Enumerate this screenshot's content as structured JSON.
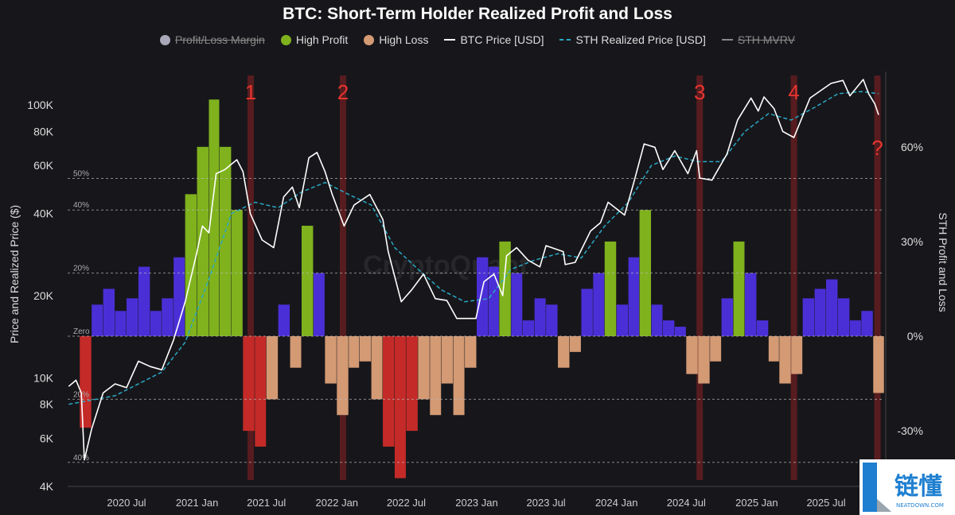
{
  "chart_data": {
    "type": "bar+line",
    "title": "BTC: Short-Term Holder Realized Profit and Loss",
    "legend": [
      {
        "label": "Profit/Loss Margin",
        "color": "#a8a8b8",
        "disabled": true,
        "marker": "dot"
      },
      {
        "label": "High Profit",
        "color": "#7fb21d",
        "disabled": false,
        "marker": "dot"
      },
      {
        "label": "High Loss",
        "color": "#d39a74",
        "disabled": false,
        "marker": "dot"
      },
      {
        "label": "BTC Price [USD]",
        "color": "#ffffff",
        "disabled": false,
        "marker": "line"
      },
      {
        "label": "STH Realized Price [USD]",
        "color": "#2aa7c4",
        "disabled": false,
        "marker": "dash"
      },
      {
        "label": "STH MVRV",
        "color": "#888888",
        "disabled": true,
        "marker": "line"
      }
    ],
    "legend_position": "top",
    "ylabel_left": "Price and Realized Price ($)",
    "ylabel_right": "STH Profit and Loss",
    "y_left_scale": "log",
    "y_left_range": [
      4000,
      130000
    ],
    "y_left_ticks": [
      {
        "v": 4000,
        "label": "4K"
      },
      {
        "v": 6000,
        "label": "6K"
      },
      {
        "v": 8000,
        "label": "8K"
      },
      {
        "v": 10000,
        "label": "10K"
      },
      {
        "v": 20000,
        "label": "20K"
      },
      {
        "v": 40000,
        "label": "40K"
      },
      {
        "v": 60000,
        "label": "60K"
      },
      {
        "v": 80000,
        "label": "80K"
      },
      {
        "v": 100000,
        "label": "100K"
      }
    ],
    "y_right_range": [
      -48,
      80
    ],
    "y_right_ticks": [
      {
        "v": -30,
        "label": "-30%"
      },
      {
        "v": 0,
        "label": "0%"
      },
      {
        "v": 30,
        "label": "30%"
      },
      {
        "v": 60,
        "label": "60%"
      }
    ],
    "x_ticks": [
      {
        "d": "2020-07-01",
        "label": "2020 Jul"
      },
      {
        "d": "2021-01-01",
        "label": "2021 Jan"
      },
      {
        "d": "2021-07-01",
        "label": "2021 Jul"
      },
      {
        "d": "2022-01-01",
        "label": "2022 Jan"
      },
      {
        "d": "2022-07-01",
        "label": "2022 Jul"
      },
      {
        "d": "2023-01-01",
        "label": "2023 Jan"
      },
      {
        "d": "2023-07-01",
        "label": "2023 Jul"
      },
      {
        "d": "2024-01-01",
        "label": "2024 Jan"
      },
      {
        "d": "2024-07-01",
        "label": "2024 Jul"
      },
      {
        "d": "2025-01-01",
        "label": "2025 Jan"
      },
      {
        "d": "2025-07-01",
        "label": "2025 Jul"
      }
    ],
    "x_range": [
      "2020-02-01",
      "2025-11-20"
    ],
    "reference_lines": [
      {
        "v": 50,
        "label": "50%"
      },
      {
        "v": 40,
        "label": "40%"
      },
      {
        "v": 20,
        "label": "20%"
      },
      {
        "v": 0,
        "label": "Zero"
      },
      {
        "v": -20,
        "label": "20%"
      },
      {
        "v": -40,
        "label": "40%"
      }
    ],
    "annotations": [
      {
        "d": "2021-05-21",
        "label": "1"
      },
      {
        "d": "2022-01-17",
        "label": "2"
      },
      {
        "d": "2024-08-05",
        "label": "3"
      },
      {
        "d": "2025-04-08",
        "label": "4"
      },
      {
        "d": "2025-11-12",
        "label": "?"
      }
    ],
    "btc_price": [
      [
        "2020-02-01",
        9300
      ],
      [
        "2020-02-20",
        9800
      ],
      [
        "2020-03-05",
        8800
      ],
      [
        "2020-03-13",
        5000
      ],
      [
        "2020-04-01",
        6500
      ],
      [
        "2020-05-01",
        8800
      ],
      [
        "2020-06-01",
        9500
      ],
      [
        "2020-07-01",
        9200
      ],
      [
        "2020-08-01",
        11500
      ],
      [
        "2020-09-01",
        11000
      ],
      [
        "2020-10-01",
        10700
      ],
      [
        "2020-11-01",
        13800
      ],
      [
        "2020-12-01",
        19000
      ],
      [
        "2021-01-01",
        29000
      ],
      [
        "2021-01-15",
        36000
      ],
      [
        "2021-02-01",
        34000
      ],
      [
        "2021-02-20",
        56000
      ],
      [
        "2021-03-15",
        58000
      ],
      [
        "2021-04-15",
        63000
      ],
      [
        "2021-05-01",
        57000
      ],
      [
        "2021-05-20",
        40000
      ],
      [
        "2021-06-20",
        32000
      ],
      [
        "2021-07-20",
        30000
      ],
      [
        "2021-08-15",
        46000
      ],
      [
        "2021-09-07",
        50000
      ],
      [
        "2021-09-25",
        42000
      ],
      [
        "2021-10-20",
        64000
      ],
      [
        "2021-11-10",
        67000
      ],
      [
        "2021-12-01",
        57000
      ],
      [
        "2021-12-20",
        47000
      ],
      [
        "2022-01-20",
        36000
      ],
      [
        "2022-02-15",
        43000
      ],
      [
        "2022-03-28",
        47000
      ],
      [
        "2022-05-01",
        38000
      ],
      [
        "2022-05-15",
        29000
      ],
      [
        "2022-06-18",
        19000
      ],
      [
        "2022-07-15",
        21000
      ],
      [
        "2022-08-15",
        24000
      ],
      [
        "2022-09-15",
        19500
      ],
      [
        "2022-10-15",
        19200
      ],
      [
        "2022-11-10",
        16500
      ],
      [
        "2022-12-30",
        16500
      ],
      [
        "2023-01-20",
        22500
      ],
      [
        "2023-02-15",
        24000
      ],
      [
        "2023-03-10",
        20000
      ],
      [
        "2023-03-20",
        28000
      ],
      [
        "2023-04-15",
        30000
      ],
      [
        "2023-05-15",
        27000
      ],
      [
        "2023-06-15",
        25500
      ],
      [
        "2023-07-01",
        30500
      ],
      [
        "2023-08-15",
        29000
      ],
      [
        "2023-08-20",
        26000
      ],
      [
        "2023-09-15",
        26500
      ],
      [
        "2023-10-25",
        34500
      ],
      [
        "2023-11-20",
        37000
      ],
      [
        "2023-12-10",
        44000
      ],
      [
        "2024-01-22",
        39500
      ],
      [
        "2024-02-15",
        52000
      ],
      [
        "2024-03-13",
        72000
      ],
      [
        "2024-04-10",
        70000
      ],
      [
        "2024-05-01",
        58000
      ],
      [
        "2024-06-01",
        68000
      ],
      [
        "2024-07-05",
        56000
      ],
      [
        "2024-07-28",
        68000
      ],
      [
        "2024-08-05",
        54000
      ],
      [
        "2024-09-06",
        53000
      ],
      [
        "2024-10-15",
        66000
      ],
      [
        "2024-11-12",
        88000
      ],
      [
        "2024-12-17",
        106000
      ],
      [
        "2025-01-05",
        95000
      ],
      [
        "2025-01-20",
        107000
      ],
      [
        "2025-02-15",
        97000
      ],
      [
        "2025-03-10",
        80000
      ],
      [
        "2025-04-08",
        76000
      ],
      [
        "2025-05-20",
        106000
      ],
      [
        "2025-07-14",
        120000
      ],
      [
        "2025-08-14",
        123000
      ],
      [
        "2025-09-01",
        108000
      ],
      [
        "2025-10-06",
        124000
      ],
      [
        "2025-10-20",
        110000
      ],
      [
        "2025-11-05",
        101000
      ],
      [
        "2025-11-15",
        92000
      ]
    ],
    "sth_realized_price": [
      [
        "2020-02-01",
        8000
      ],
      [
        "2020-06-01",
        8600
      ],
      [
        "2020-10-01",
        10500
      ],
      [
        "2020-12-01",
        13500
      ],
      [
        "2021-02-01",
        23000
      ],
      [
        "2021-04-01",
        40000
      ],
      [
        "2021-06-01",
        44000
      ],
      [
        "2021-08-01",
        42000
      ],
      [
        "2021-10-01",
        48000
      ],
      [
        "2021-12-01",
        52000
      ],
      [
        "2022-02-01",
        47000
      ],
      [
        "2022-04-01",
        43000
      ],
      [
        "2022-06-01",
        30000
      ],
      [
        "2022-08-01",
        25000
      ],
      [
        "2022-10-01",
        21000
      ],
      [
        "2022-12-01",
        19000
      ],
      [
        "2023-02-01",
        19500
      ],
      [
        "2023-04-01",
        25000
      ],
      [
        "2023-06-01",
        27000
      ],
      [
        "2023-08-01",
        28500
      ],
      [
        "2023-10-01",
        27500
      ],
      [
        "2023-12-01",
        36000
      ],
      [
        "2024-02-01",
        44000
      ],
      [
        "2024-04-01",
        60000
      ],
      [
        "2024-06-01",
        65000
      ],
      [
        "2024-08-01",
        62000
      ],
      [
        "2024-10-01",
        62000
      ],
      [
        "2024-12-01",
        80000
      ],
      [
        "2025-02-01",
        93000
      ],
      [
        "2025-04-01",
        88000
      ],
      [
        "2025-06-01",
        98000
      ],
      [
        "2025-08-01",
        110000
      ],
      [
        "2025-10-01",
        112000
      ],
      [
        "2025-11-15",
        110000
      ]
    ],
    "profit_loss_margin": [
      [
        "2020-03-01",
        -29,
        "high"
      ],
      [
        "2020-04-01",
        10,
        ""
      ],
      [
        "2020-05-01",
        15,
        ""
      ],
      [
        "2020-06-01",
        8,
        ""
      ],
      [
        "2020-07-01",
        12,
        ""
      ],
      [
        "2020-08-01",
        22,
        ""
      ],
      [
        "2020-09-01",
        8,
        ""
      ],
      [
        "2020-10-01",
        12,
        ""
      ],
      [
        "2020-11-01",
        25,
        ""
      ],
      [
        "2020-12-01",
        45,
        "high"
      ],
      [
        "2021-01-01",
        60,
        "high"
      ],
      [
        "2021-02-01",
        75,
        "high"
      ],
      [
        "2021-03-01",
        60,
        "high"
      ],
      [
        "2021-04-01",
        40,
        "high"
      ],
      [
        "2021-05-01",
        -30,
        "high"
      ],
      [
        "2021-06-01",
        -35,
        "high"
      ],
      [
        "2021-07-01",
        -20,
        ""
      ],
      [
        "2021-08-01",
        10,
        ""
      ],
      [
        "2021-09-01",
        -10,
        ""
      ],
      [
        "2021-10-01",
        35,
        "high"
      ],
      [
        "2021-11-01",
        20,
        ""
      ],
      [
        "2021-12-01",
        -15,
        ""
      ],
      [
        "2022-01-01",
        -25,
        ""
      ],
      [
        "2022-02-01",
        -10,
        ""
      ],
      [
        "2022-03-01",
        -8,
        ""
      ],
      [
        "2022-04-01",
        -20,
        ""
      ],
      [
        "2022-05-01",
        -35,
        "high"
      ],
      [
        "2022-06-01",
        -45,
        "high"
      ],
      [
        "2022-07-01",
        -30,
        "high"
      ],
      [
        "2022-08-01",
        -20,
        ""
      ],
      [
        "2022-09-01",
        -25,
        ""
      ],
      [
        "2022-10-01",
        -15,
        ""
      ],
      [
        "2022-11-01",
        -25,
        ""
      ],
      [
        "2022-12-01",
        -10,
        ""
      ],
      [
        "2023-01-01",
        25,
        ""
      ],
      [
        "2023-02-01",
        22,
        ""
      ],
      [
        "2023-03-01",
        30,
        "high"
      ],
      [
        "2023-04-01",
        20,
        ""
      ],
      [
        "2023-05-01",
        5,
        ""
      ],
      [
        "2023-06-01",
        12,
        ""
      ],
      [
        "2023-07-01",
        10,
        ""
      ],
      [
        "2023-08-01",
        -10,
        ""
      ],
      [
        "2023-09-01",
        -5,
        ""
      ],
      [
        "2023-10-01",
        15,
        ""
      ],
      [
        "2023-11-01",
        20,
        ""
      ],
      [
        "2023-12-01",
        30,
        "high"
      ],
      [
        "2024-01-01",
        10,
        ""
      ],
      [
        "2024-02-01",
        25,
        ""
      ],
      [
        "2024-03-01",
        40,
        "high"
      ],
      [
        "2024-04-01",
        10,
        ""
      ],
      [
        "2024-05-01",
        5,
        ""
      ],
      [
        "2024-06-01",
        3,
        ""
      ],
      [
        "2024-07-01",
        -12,
        ""
      ],
      [
        "2024-08-01",
        -15,
        ""
      ],
      [
        "2024-09-01",
        -8,
        ""
      ],
      [
        "2024-10-01",
        12,
        ""
      ],
      [
        "2024-11-01",
        30,
        "high"
      ],
      [
        "2024-12-01",
        20,
        ""
      ],
      [
        "2025-01-01",
        5,
        ""
      ],
      [
        "2025-02-01",
        -8,
        ""
      ],
      [
        "2025-03-01",
        -15,
        ""
      ],
      [
        "2025-04-01",
        -12,
        ""
      ],
      [
        "2025-05-01",
        12,
        ""
      ],
      [
        "2025-06-01",
        15,
        ""
      ],
      [
        "2025-07-01",
        18,
        ""
      ],
      [
        "2025-08-01",
        12,
        ""
      ],
      [
        "2025-09-01",
        5,
        ""
      ],
      [
        "2025-10-01",
        8,
        ""
      ],
      [
        "2025-11-01",
        -18,
        ""
      ]
    ],
    "colors": {
      "profit": "#4b2fd6",
      "high_profit": "#7fb21d",
      "loss": "#d39a74",
      "high_loss": "#c42b28",
      "price": "#ffffff",
      "realized": "#2aa7c4",
      "band": "#7a1e22",
      "annotation": "#e8352f"
    },
    "watermark": "CryptoQuant",
    "grid": false
  },
  "logo": {
    "cn": "链懂",
    "en": "NEATDOWN.COM"
  }
}
